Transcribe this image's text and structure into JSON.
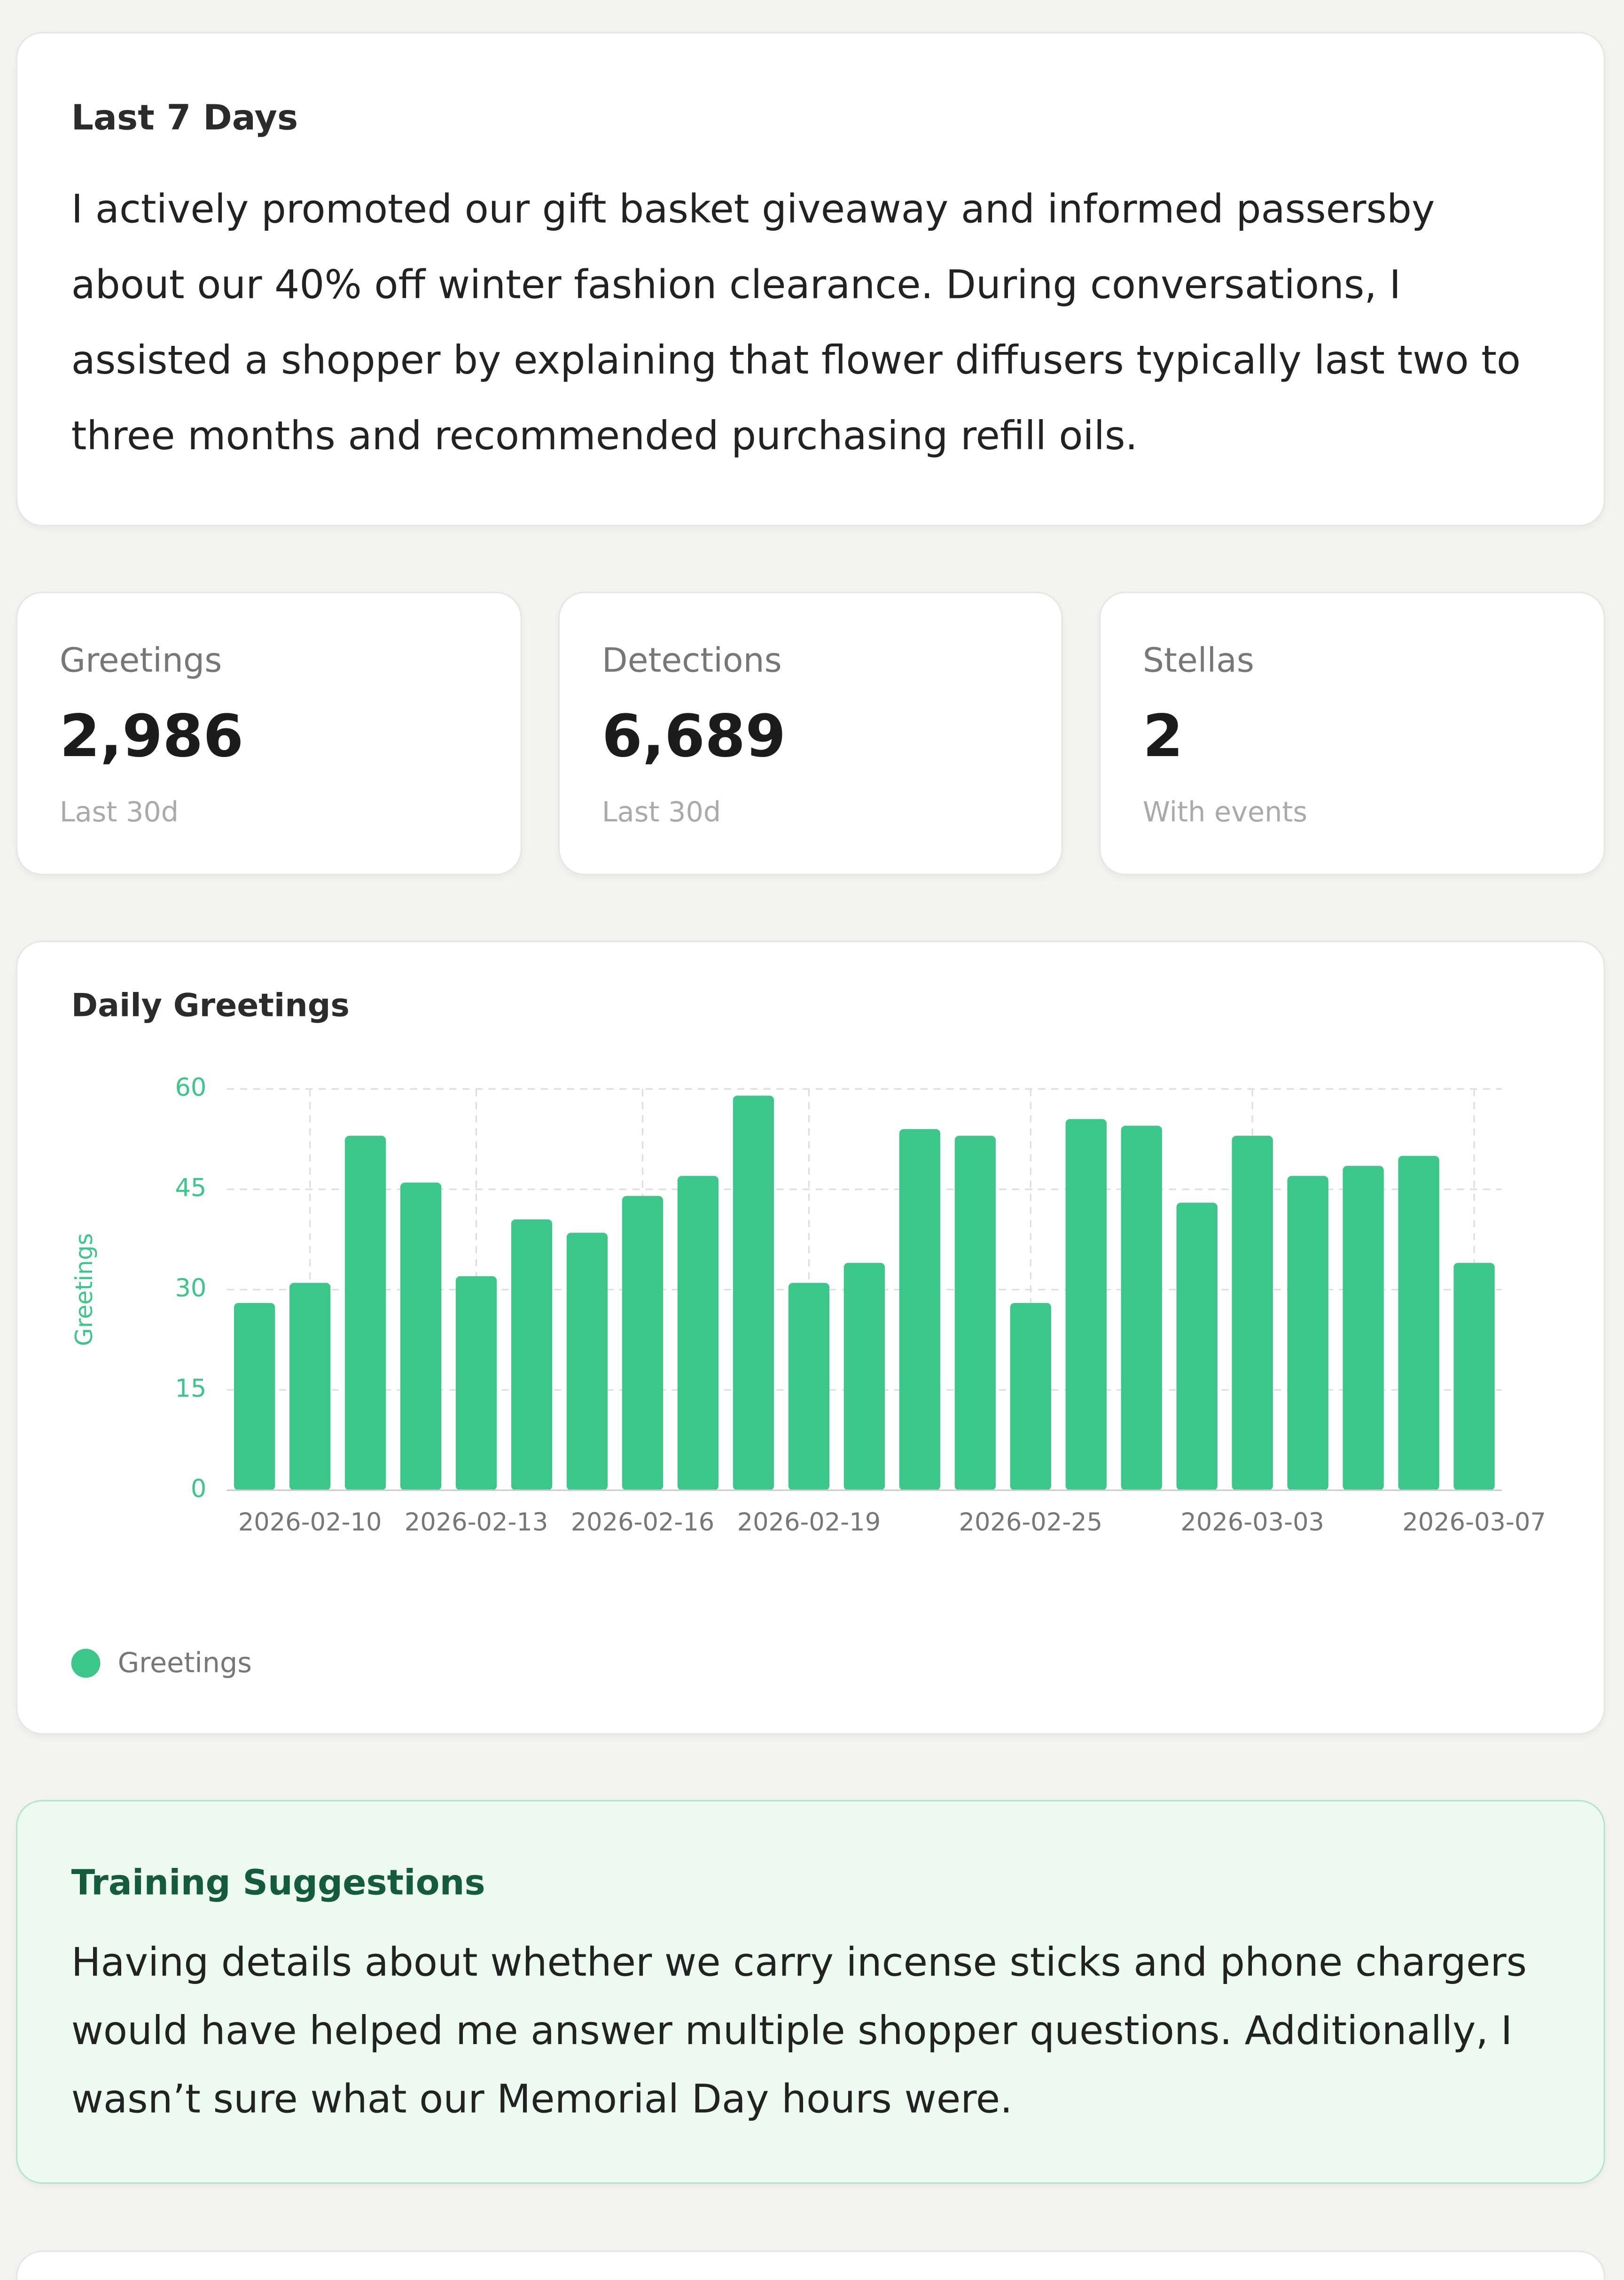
{
  "summary": {
    "title": "Last 7 Days",
    "text": "I actively promoted our gift basket giveaway and informed passersby about our 40% off winter fashion clearance. During conversations, I assisted a shopper by explaining that flower diffusers typically last two to three months and recommended purchasing refill oils."
  },
  "stats": [
    {
      "label": "Greetings",
      "value": "2,986",
      "note": "Last 30d"
    },
    {
      "label": "Detections",
      "value": "6,689",
      "note": "Last 30d"
    },
    {
      "label": "Stellas",
      "value": "2",
      "note": "With events"
    }
  ],
  "chart_data": {
    "type": "bar",
    "title": "Daily Greetings",
    "y_label": "Greetings",
    "categories": [
      null,
      "2026-02-10",
      null,
      null,
      "2026-02-13",
      null,
      null,
      "2026-02-16",
      null,
      null,
      "2026-02-19",
      null,
      null,
      null,
      "2026-02-25",
      null,
      null,
      null,
      "2026-03-03",
      null,
      null,
      null,
      "2026-03-07"
    ],
    "series": [
      {
        "name": "Greetings",
        "color": "#3cc68a",
        "values": [
          28,
          31,
          53,
          46,
          32,
          40.5,
          38.5,
          44,
          47,
          59,
          31,
          34,
          54,
          53,
          28,
          55.5,
          54.5,
          43,
          53,
          47,
          48.5,
          50,
          34
        ]
      }
    ],
    "ylim": [
      0,
      60
    ],
    "yticks": [
      0,
      15,
      30,
      45,
      60
    ],
    "grid": true,
    "legend": "bottom-left"
  },
  "training": {
    "title": "Training Suggestions",
    "text": "Having details about whether we carry incense sticks and phone chargers would have helped me answer multiple shopper questions. Additionally, I wasn’t sure what our Memorial Day hours were."
  }
}
